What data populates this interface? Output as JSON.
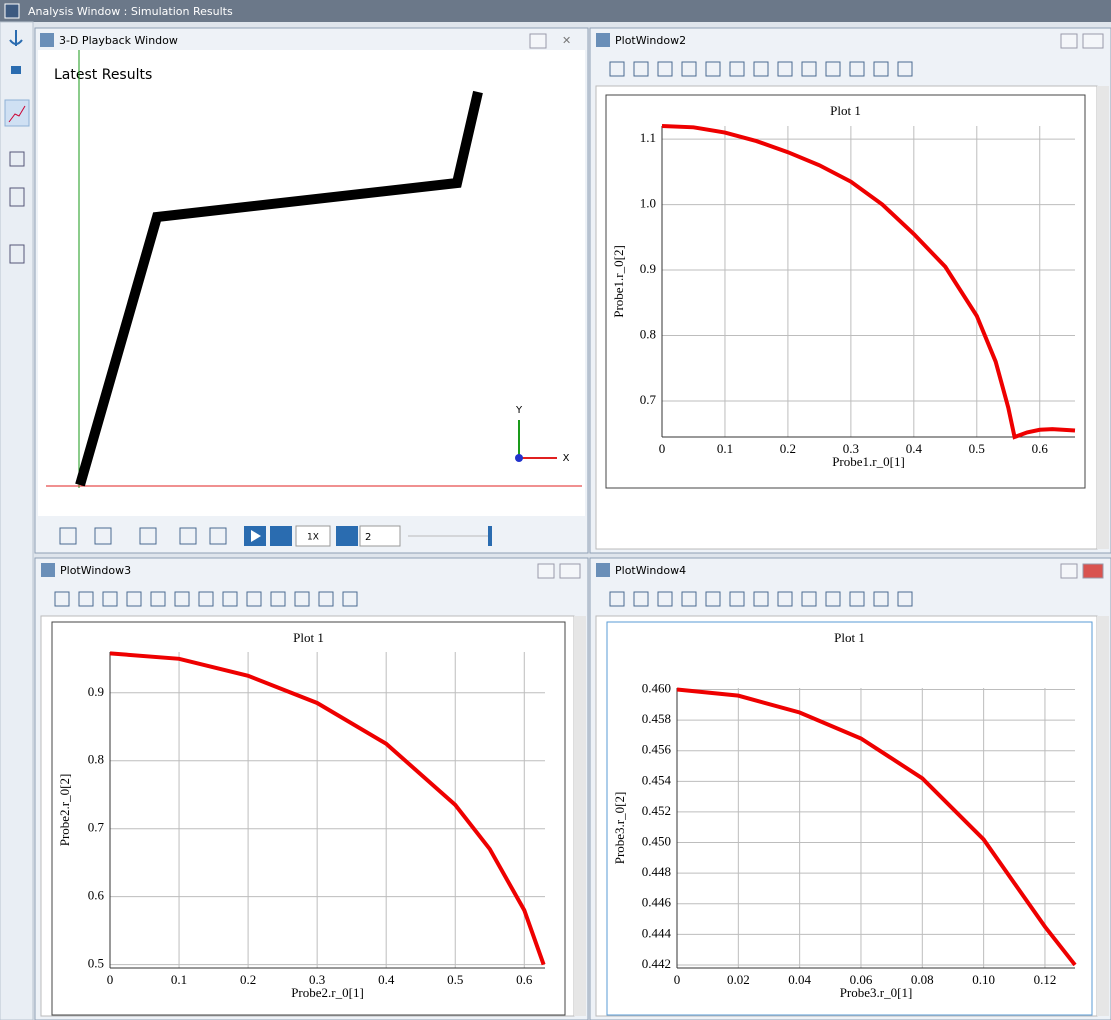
{
  "window": {
    "title": "Analysis Window : Simulation Results"
  },
  "playback": {
    "title": "3-D Playback Window",
    "label": "Latest Results",
    "axis_y": "Y",
    "axis_x": "X",
    "speed": "1X",
    "frame": "2"
  },
  "plot_windows": [
    {
      "title": "PlotWindow2"
    },
    {
      "title": "PlotWindow3"
    },
    {
      "title": "PlotWindow4"
    }
  ],
  "chart_data": [
    {
      "type": "line",
      "title": "Plot 1",
      "xlabel": "Probe1.r_0[1]",
      "ylabel": "Probe1.r_0[2]",
      "x": [
        0,
        0.05,
        0.1,
        0.15,
        0.2,
        0.25,
        0.3,
        0.35,
        0.4,
        0.45,
        0.5,
        0.53,
        0.55,
        0.56,
        0.58,
        0.6,
        0.62,
        0.656
      ],
      "series": [
        {
          "color": "#ee0000",
          "values": [
            1.12,
            1.118,
            1.11,
            1.097,
            1.08,
            1.06,
            1.035,
            1.0,
            0.955,
            0.905,
            0.83,
            0.76,
            0.69,
            0.645,
            0.652,
            0.656,
            0.657,
            0.655
          ]
        }
      ],
      "xlim": [
        0,
        0.656
      ],
      "ylim": [
        0.645,
        1.12
      ],
      "xticks": [
        0,
        0.1,
        0.2,
        0.3,
        0.4,
        0.5,
        0.6
      ],
      "yticks": [
        0.7,
        0.8,
        0.9,
        {
          "value": 1.0,
          "label": "1.0"
        },
        1.1
      ],
      "grid": true
    },
    {
      "type": "line",
      "title": "Plot 1",
      "xlabel": "Probe2.r_0[1]",
      "ylabel": "Probe2.r_0[2]",
      "x": [
        0,
        0.1,
        0.2,
        0.3,
        0.4,
        0.5,
        0.55,
        0.6,
        0.628
      ],
      "series": [
        {
          "color": "#ee0000",
          "values": [
            0.958,
            0.95,
            0.925,
            0.885,
            0.825,
            0.735,
            0.67,
            0.58,
            0.5
          ]
        }
      ],
      "xlim": [
        0,
        0.63
      ],
      "ylim": [
        0.495,
        0.96
      ],
      "xticks": [
        0,
        0.1,
        0.2,
        0.3,
        0.4,
        0.5,
        0.6
      ],
      "yticks": [
        0.5,
        0.6,
        0.7,
        0.8,
        0.9
      ],
      "grid": true
    },
    {
      "type": "line",
      "title": "Plot 1",
      "xlabel": "Probe3.r_0[1]",
      "ylabel": "Probe3.r_0[2]",
      "x": [
        0,
        0.02,
        0.04,
        0.06,
        0.08,
        0.1,
        0.12,
        0.1298
      ],
      "series": [
        {
          "color": "#ee0000",
          "values": [
            0.46,
            0.4596,
            0.4585,
            0.4568,
            0.4542,
            0.4502,
            0.4445,
            0.442
          ]
        }
      ],
      "xlim": [
        0,
        0.1298
      ],
      "ylim": [
        0.4418,
        0.4601
      ],
      "xticks": [
        0,
        0.02,
        0.04,
        0.06,
        0.08,
        {
          "value": 0.1,
          "label": "0.10"
        },
        0.12
      ],
      "yticks": [
        0.442,
        0.444,
        0.446,
        0.448,
        {
          "value": 0.45,
          "label": "0.450"
        },
        0.452,
        0.454,
        0.456,
        0.458,
        {
          "value": 0.46,
          "label": "0.460"
        }
      ],
      "grid": true
    }
  ]
}
